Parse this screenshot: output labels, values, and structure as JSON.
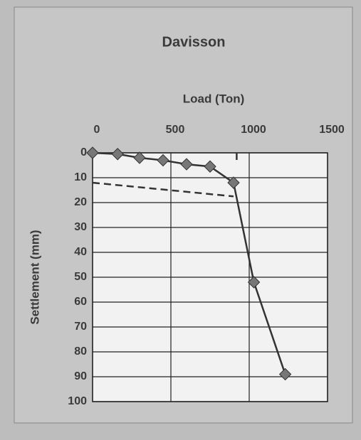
{
  "chart_data": {
    "type": "line",
    "title": "Davisson",
    "x_label": "Load (Ton)",
    "y_label": "Settlement (mm)",
    "xlim": [
      0,
      1500
    ],
    "xticks": [
      0,
      500,
      1000,
      1500
    ],
    "x_axis_position": "top",
    "ylim": [
      0,
      100
    ],
    "yticks": [
      0,
      10,
      20,
      30,
      40,
      50,
      60,
      70,
      80,
      90,
      100
    ],
    "y_reversed": true,
    "grid": true,
    "series": [
      {
        "x": [
          0,
          160,
          300,
          450,
          600,
          750,
          900,
          1030,
          1230
        ],
        "values": [
          0,
          0.5,
          2,
          3,
          4.6,
          5.5,
          12,
          52,
          89
        ],
        "color": "#333333",
        "marker": "diamond",
        "marker_color": "#777777",
        "dashed": false
      },
      {
        "x": [
          0,
          900
        ],
        "values": [
          12,
          17.5
        ],
        "color": "#333333",
        "dashed": true
      },
      {
        "x": [
          920,
          920
        ],
        "values": [
          0,
          4
        ],
        "color": "#333333",
        "dashed": true
      }
    ]
  }
}
